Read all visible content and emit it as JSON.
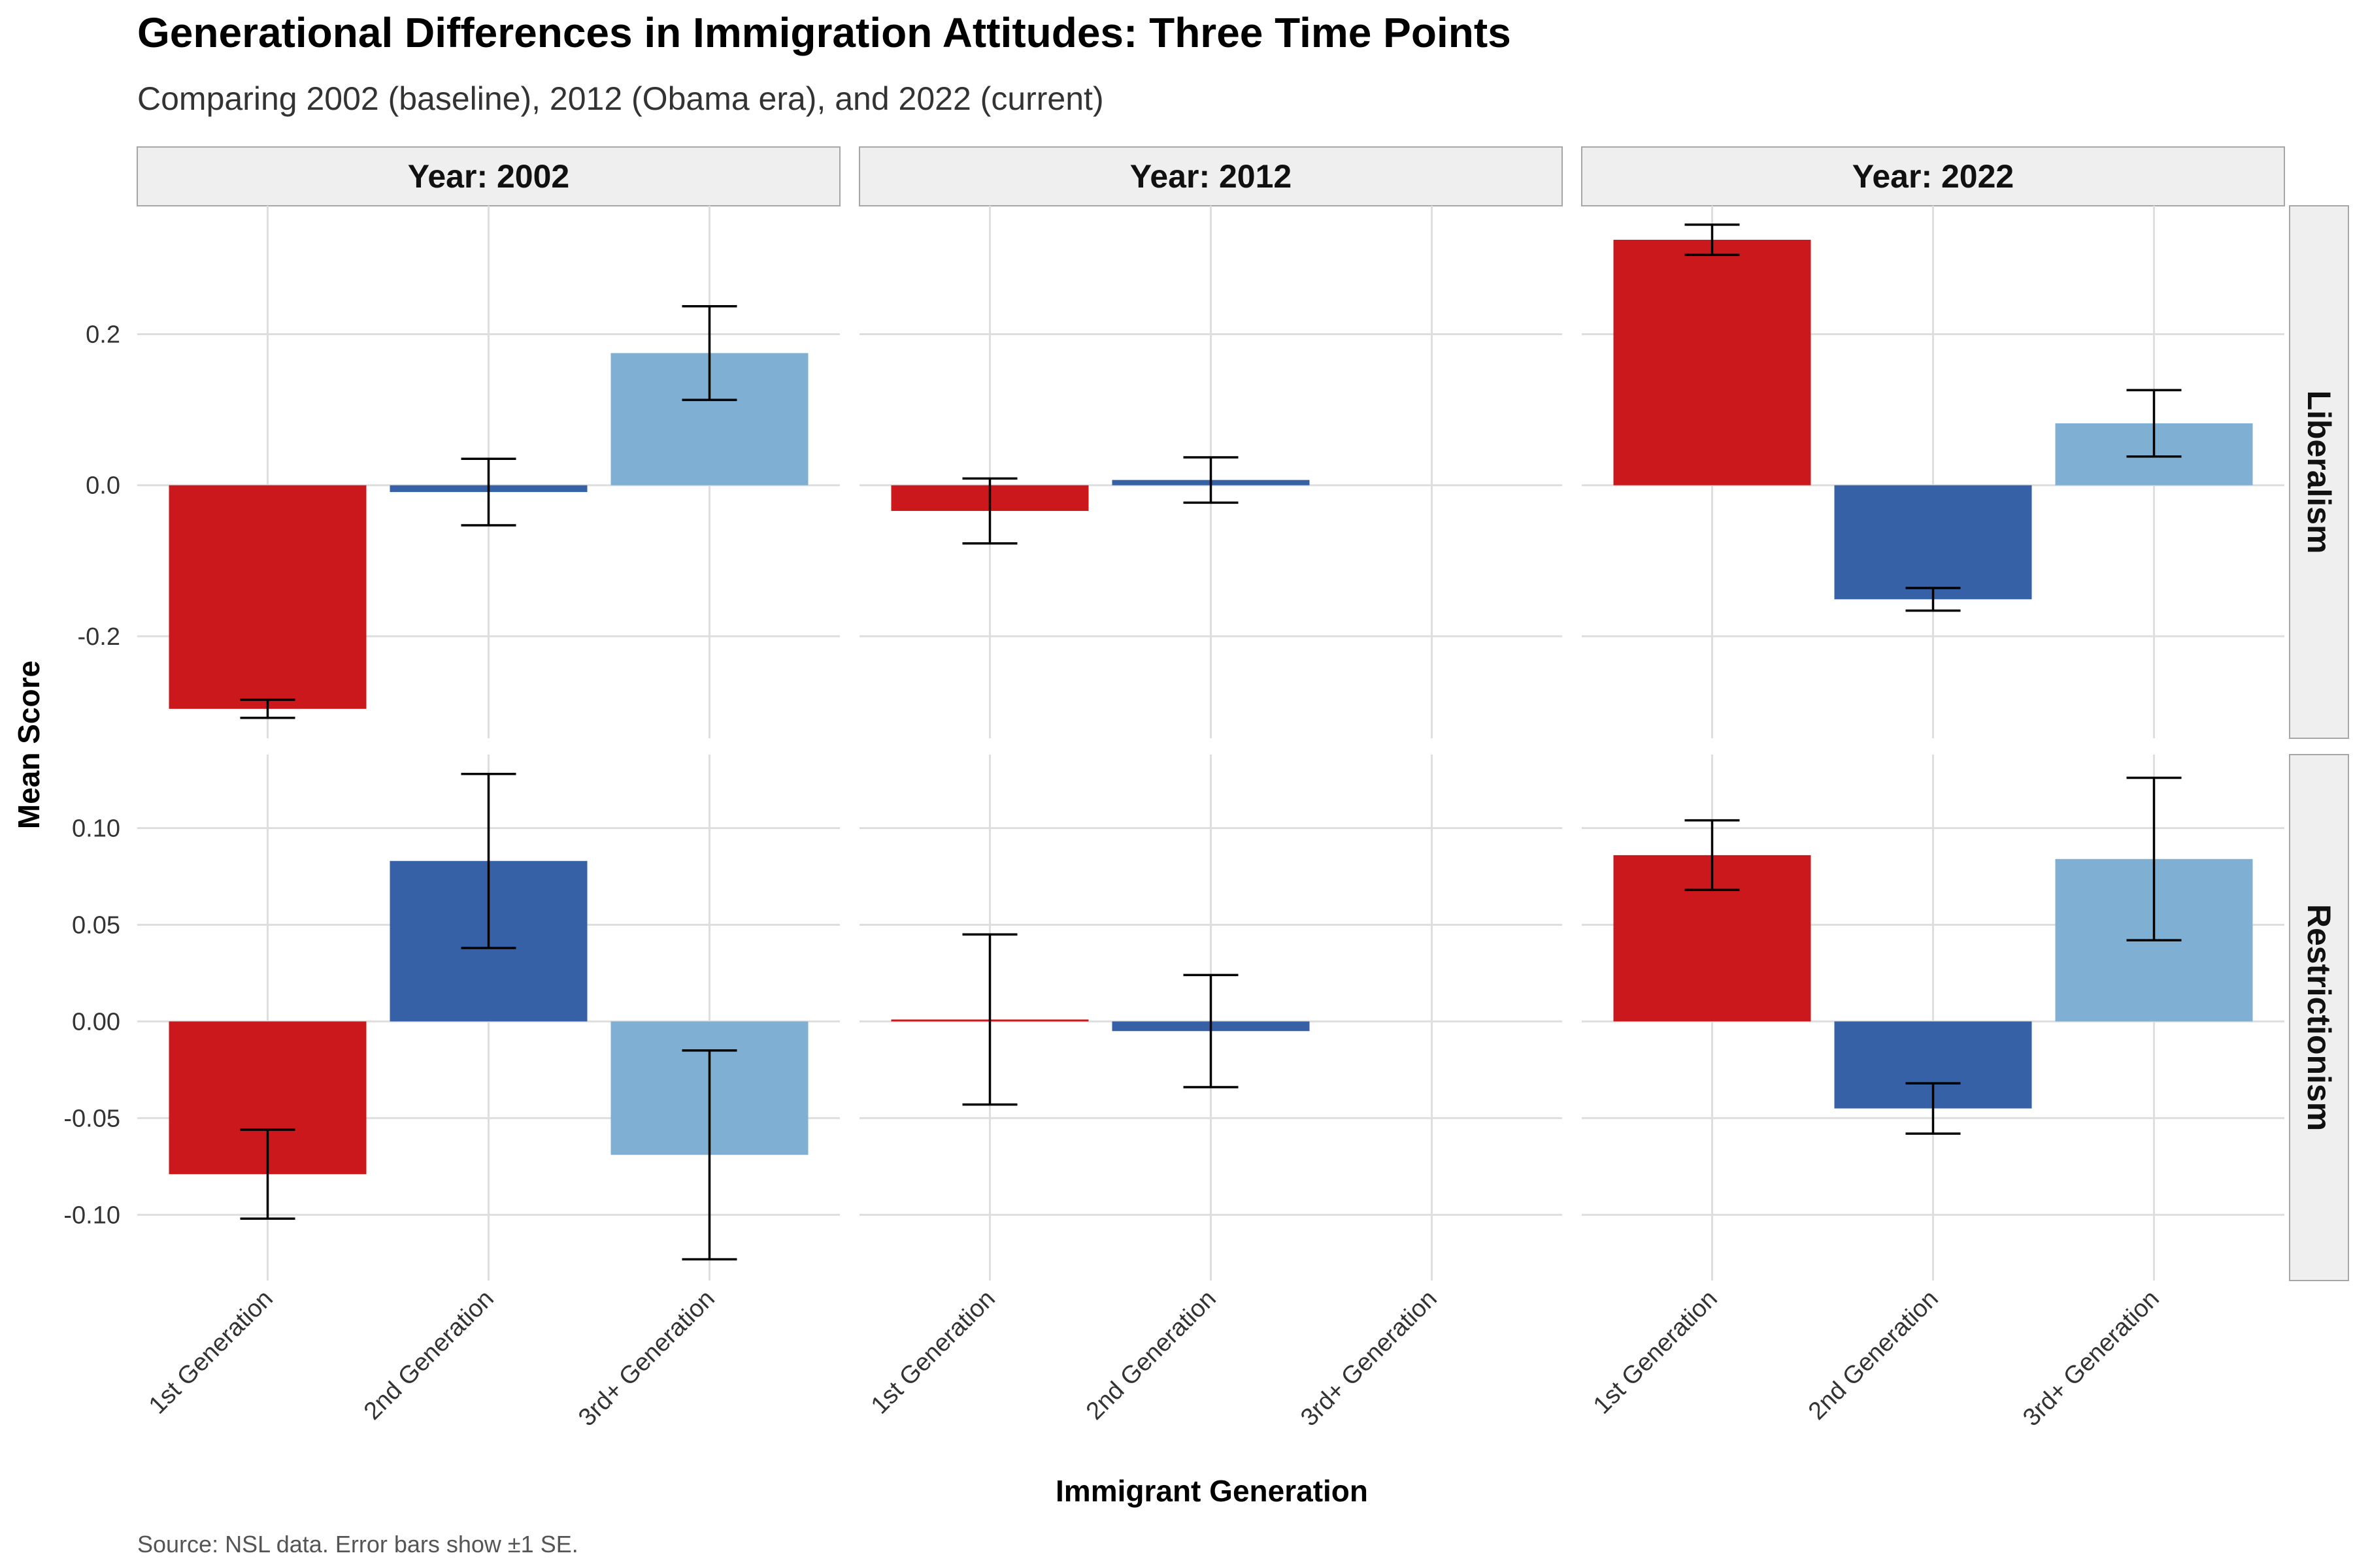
{
  "title": "Generational Differences in Immigration Attitudes: Three Time Points",
  "subtitle": "Comparing 2002 (baseline), 2012 (Obama era), and 2022 (current)",
  "caption": "Source: NSL data. Error bars show ±1 SE.",
  "chart_data": {
    "type": "bar",
    "facet_columns": [
      "Year: 2002",
      "Year: 2012",
      "Year: 2022"
    ],
    "facet_rows": [
      "Liberalism",
      "Restrictionism"
    ],
    "categories": [
      "1st Generation",
      "2nd Generation",
      "3rd+ Generation"
    ],
    "xlabel": "Immigrant Generation",
    "ylabel": "Mean Score",
    "colors": {
      "1st Generation": "#CB181D",
      "2nd Generation": "#3661A6",
      "3rd+ Generation": "#7FB0D3"
    },
    "grid": true,
    "legend": "none",
    "panels": [
      {
        "row": "Liberalism",
        "ylim": [
          -0.335,
          0.37
        ],
        "yticks": [
          -0.2,
          0.0,
          0.2
        ],
        "ytick_labels": [
          "-0.2",
          "0.0",
          "0.2"
        ],
        "years": [
          {
            "year": "Year: 2002",
            "values": [
              -0.296,
              -0.009,
              0.175
            ],
            "se": [
              0.012,
              0.044,
              0.062
            ]
          },
          {
            "year": "Year: 2012",
            "values": [
              -0.034,
              0.007,
              null
            ],
            "se": [
              0.043,
              0.03,
              null
            ]
          },
          {
            "year": "Year: 2022",
            "values": [
              0.325,
              -0.151,
              0.082
            ],
            "se": [
              0.02,
              0.015,
              0.044
            ]
          }
        ]
      },
      {
        "row": "Restrictionism",
        "ylim": [
          -0.134,
          0.138
        ],
        "yticks": [
          -0.1,
          -0.05,
          0.0,
          0.05,
          0.1
        ],
        "ytick_labels": [
          "-0.10",
          "-0.05",
          "0.00",
          "0.05",
          "0.10"
        ],
        "years": [
          {
            "year": "Year: 2002",
            "values": [
              -0.079,
              0.083,
              -0.069
            ],
            "se": [
              0.023,
              0.045,
              0.054
            ]
          },
          {
            "year": "Year: 2012",
            "values": [
              0.001,
              -0.005,
              null
            ],
            "se": [
              0.044,
              0.029,
              null
            ]
          },
          {
            "year": "Year: 2022",
            "values": [
              0.086,
              -0.045,
              0.084
            ],
            "se": [
              0.018,
              0.013,
              0.042
            ]
          }
        ]
      }
    ]
  }
}
